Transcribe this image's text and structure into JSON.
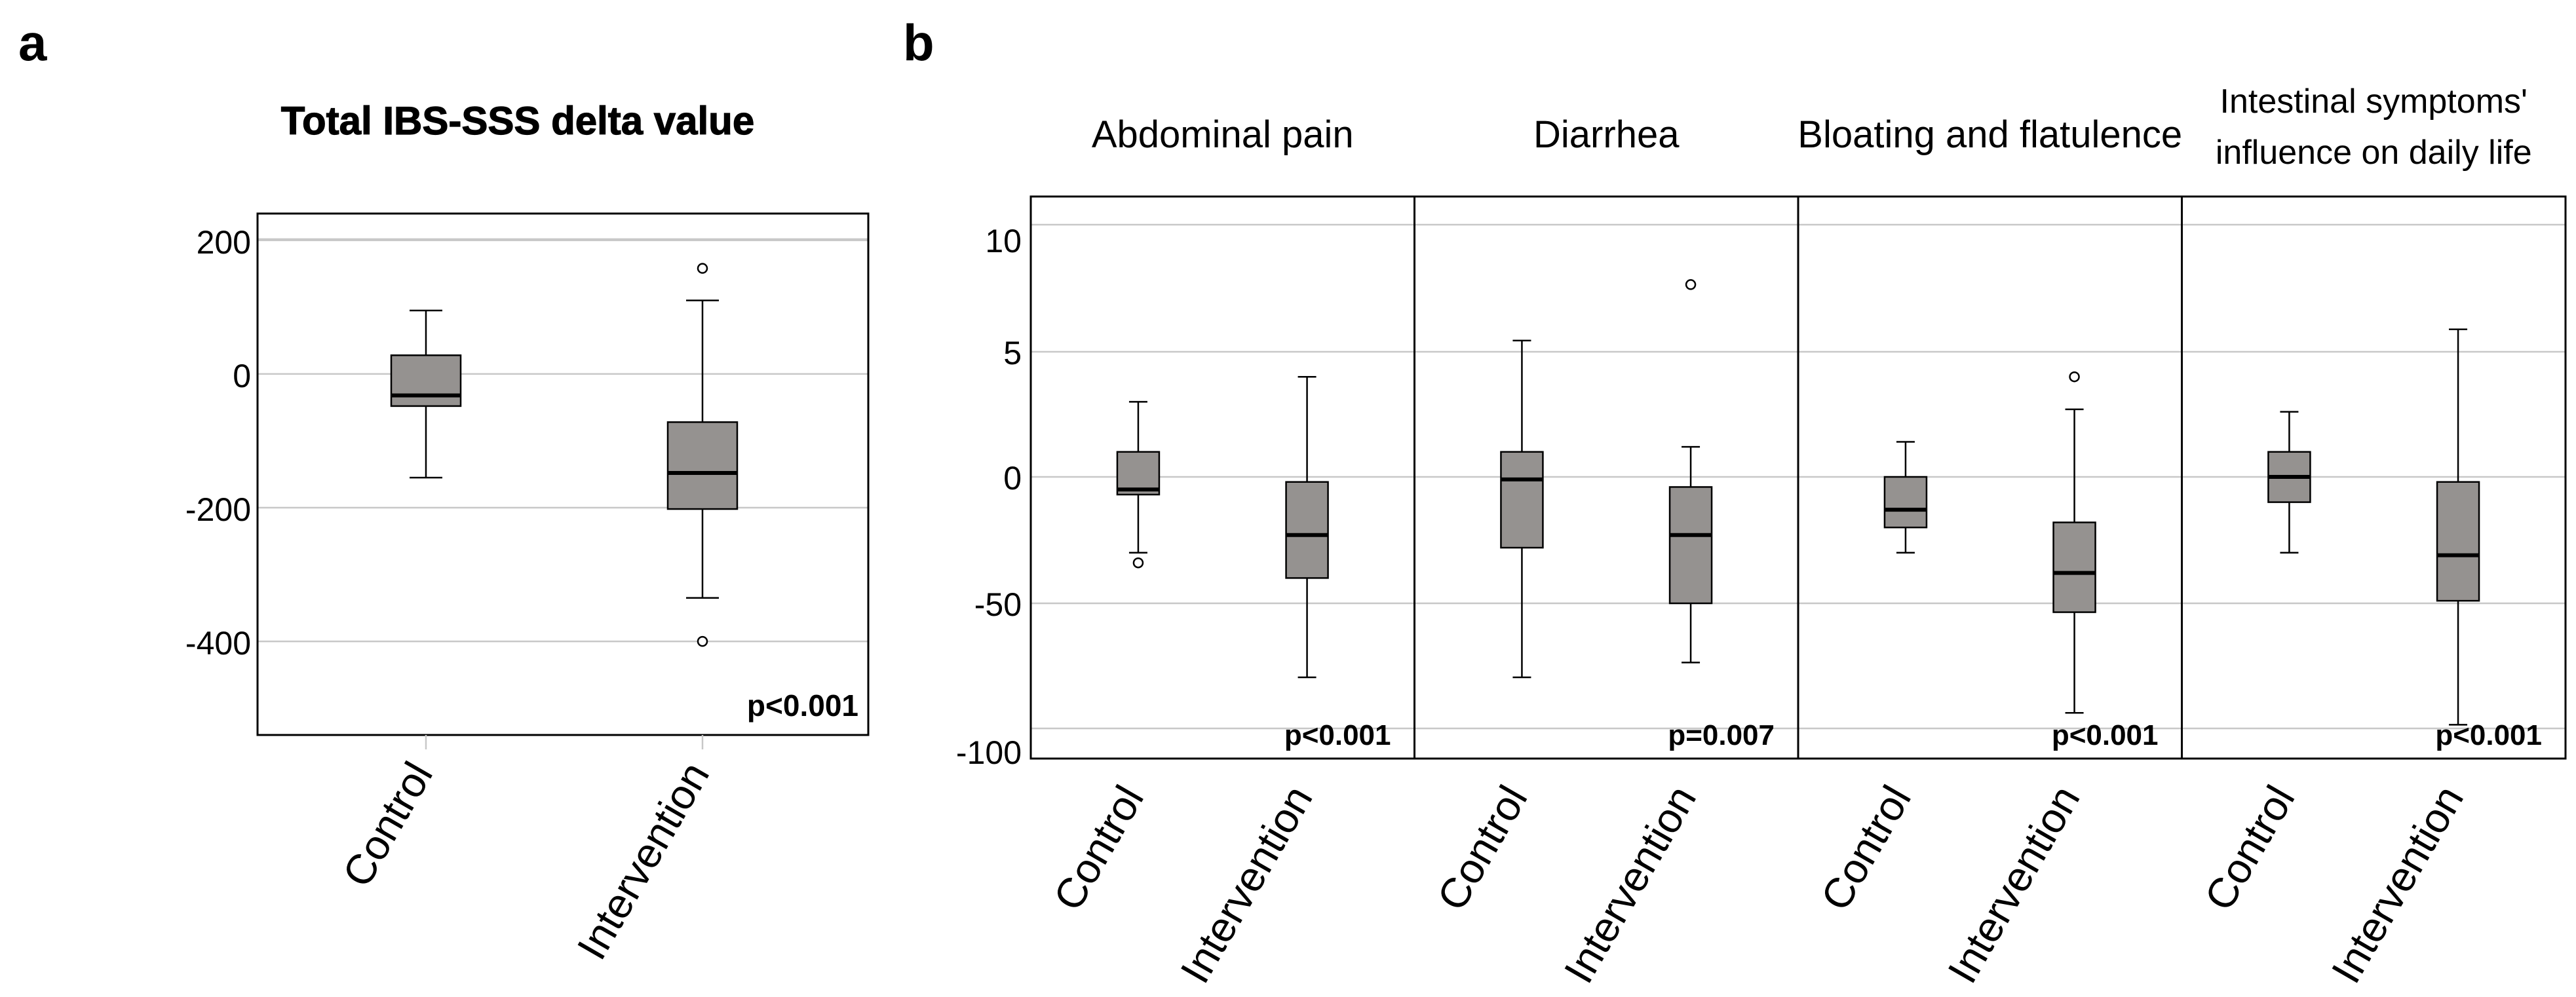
{
  "colors": {
    "box_fill": "#959290",
    "axis": "#000000",
    "grid": "#c8c8c8",
    "whisker": "#000000"
  },
  "panel_labels": {
    "a": "a",
    "b": "b"
  },
  "chart_data": [
    {
      "id": "a",
      "type": "box",
      "title": "Total IBS-SSS delta value",
      "categories": [
        "Control",
        "Intervention"
      ],
      "ylim": [
        -540,
        240
      ],
      "yticks": [
        {
          "value": 200,
          "label": "200"
        },
        {
          "value": 0,
          "label": "0"
        },
        {
          "value": -200,
          "label": "-200"
        },
        {
          "value": -400,
          "label": "-400"
        }
      ],
      "gridlines": [
        200,
        0,
        -200,
        -400
      ],
      "boxes": [
        {
          "min": -155,
          "q1": -48,
          "median": -32,
          "q3": 28,
          "max": 95,
          "outliers": []
        },
        {
          "min": -335,
          "q1": -202,
          "median": -148,
          "q3": -72,
          "max": 110,
          "outliers": [
            158,
            -400
          ]
        }
      ],
      "pvalue": "p<0.001",
      "grid": true
    },
    {
      "id": "b",
      "type": "box",
      "ylim": [
        -110,
        11.5
      ],
      "yticks": [
        {
          "value": 10,
          "label": "10"
        },
        {
          "value": 5,
          "label": "5"
        },
        {
          "value": 0,
          "label": "0"
        },
        {
          "value": -50,
          "label": "-50"
        },
        {
          "value": -100,
          "label": "-100"
        }
      ],
      "note_y_axis": "the printed tick labels are unevenly spaced; values below are in the units the axis prints",
      "panels": [
        {
          "title": [
            "Abdominal pain"
          ],
          "categories": [
            "Control",
            "Intervention"
          ],
          "boxes": [
            {
              "min": -30,
              "q1": -7,
              "median": -5,
              "q3": 1,
              "max": 3,
              "outliers": [
                -34
              ]
            },
            {
              "min": -75,
              "q1": -40,
              "median": -23,
              "q3": -2,
              "max": 4,
              "outliers": []
            }
          ],
          "pvalue": "p<0.001"
        },
        {
          "title": [
            "Diarrhea"
          ],
          "categories": [
            "Control",
            "Intervention"
          ],
          "boxes": [
            {
              "min": -75,
              "q1": -28,
              "median": -1,
              "q3": 1,
              "max": 5.5,
              "outliers": []
            },
            {
              "min": -70,
              "q1": -50,
              "median": -23,
              "q3": -4,
              "max": 1.2,
              "outliers": [
                8
              ]
            }
          ],
          "pvalue": "p=0.007"
        },
        {
          "title": [
            "Bloating and flatulence"
          ],
          "categories": [
            "Control",
            "Intervention"
          ],
          "boxes": [
            {
              "min": -30,
              "q1": -20,
              "median": -13,
              "q3": 0,
              "max": 1.4,
              "outliers": []
            },
            {
              "min": -87,
              "q1": -53,
              "median": -38,
              "q3": -18,
              "max": 2.7,
              "outliers": [
                4
              ]
            }
          ],
          "pvalue": "p<0.001"
        },
        {
          "title": [
            "Intestinal symptoms'",
            "influence on daily life"
          ],
          "categories": [
            "Control",
            "Intervention"
          ],
          "boxes": [
            {
              "min": -30,
              "q1": -10,
              "median": 0,
              "q3": 1,
              "max": 2.6,
              "outliers": []
            },
            {
              "min": -91,
              "q1": -49,
              "median": -31,
              "q3": -2,
              "max": 6,
              "outliers": []
            }
          ],
          "pvalue": "p<0.001"
        }
      ],
      "grid": true
    }
  ]
}
